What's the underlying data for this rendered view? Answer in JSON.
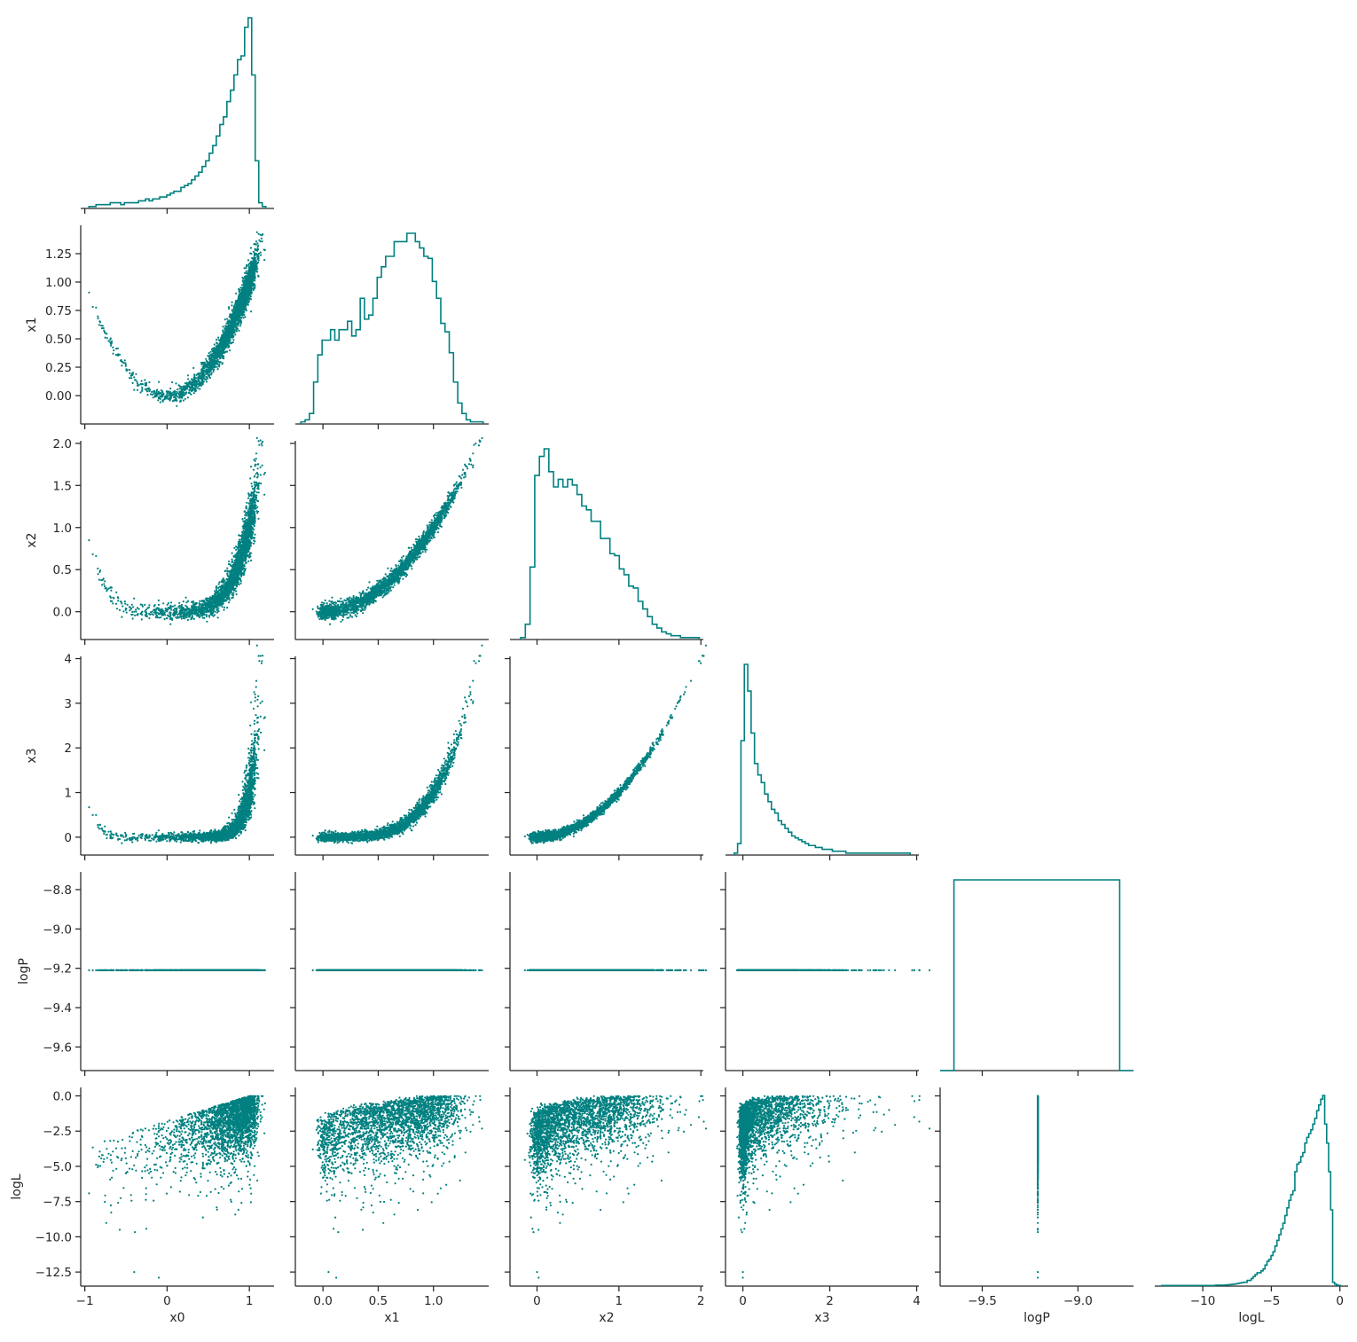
{
  "chart_data": {
    "type": "scatter",
    "layout": "corner-plot",
    "color": "#008080",
    "variables": [
      "x0",
      "x1",
      "x2",
      "x3",
      "logP",
      "logL"
    ],
    "axis_labels": {
      "x0": "x0",
      "x1": "x1",
      "x2": "x2",
      "x3": "x3",
      "logP": "logP",
      "logL": "logL"
    },
    "ranges": {
      "x0": [
        -1.05,
        1.3
      ],
      "x1": [
        -0.25,
        1.5
      ],
      "x2": [
        -0.33,
        2.03
      ],
      "x3": [
        -0.4,
        4.05
      ],
      "logP": [
        -9.72,
        -8.71
      ],
      "logL": [
        -13.5,
        0.6
      ]
    },
    "ticks": {
      "x0": [
        -1,
        0,
        1
      ],
      "x1": [
        0.0,
        0.5,
        1.0
      ],
      "x2": [
        0,
        1,
        2
      ],
      "x3": [
        0,
        2,
        4
      ],
      "logP": [
        -9.5,
        -9.0
      ],
      "logL": [
        -10,
        -5,
        0
      ]
    },
    "row_ticks": {
      "x1": [
        0.0,
        0.25,
        0.5,
        0.75,
        1.0,
        1.25
      ],
      "x2": [
        0.0,
        0.5,
        1.0,
        1.5,
        2.0
      ],
      "x3": [
        0,
        1,
        2,
        3,
        4
      ],
      "logP": [
        -9.6,
        -9.4,
        -9.2,
        -9.0,
        -8.8
      ],
      "logL": [
        -12.5,
        -10.0,
        -7.5,
        -5.0,
        -2.5,
        0.0
      ]
    },
    "tick_text": {
      "x": {
        "x0": [
          "−1",
          "0",
          "1"
        ],
        "x1": [
          "0.0",
          "0.5",
          "1.0"
        ],
        "x2": [
          "0",
          "1",
          "2"
        ],
        "x3": [
          "0",
          "2",
          "4"
        ],
        "logP": [
          "−9.5",
          "−9.0"
        ],
        "logL": [
          "−10",
          "−5",
          "0"
        ]
      },
      "y": {
        "x1": [
          "0.00",
          "0.25",
          "0.50",
          "0.75",
          "1.00",
          "1.25"
        ],
        "x2": [
          "0.0",
          "0.5",
          "1.0",
          "1.5",
          "2.0"
        ],
        "x3": [
          "0",
          "1",
          "2",
          "3",
          "4"
        ],
        "logP": [
          "−9.6",
          "−9.4",
          "−9.2",
          "−9.0",
          "−8.8"
        ],
        "logL": [
          "−12.5",
          "−10.0",
          "−7.5",
          "−5.0",
          "−2.5",
          "0.0"
        ]
      }
    },
    "histograms": {
      "x0": {
        "range": [
          -0.95,
          1.2
        ],
        "counts": [
          1,
          1,
          2,
          2,
          2,
          2,
          3,
          3,
          3,
          2,
          3,
          3,
          3,
          3,
          4,
          4,
          5,
          4,
          5,
          5,
          6,
          6,
          7,
          8,
          9,
          9,
          11,
          12,
          13,
          15,
          17,
          19,
          22,
          25,
          29,
          33,
          38,
          44,
          48,
          56,
          62,
          70,
          78,
          80,
          95,
          100,
          70,
          25,
          3,
          1
        ]
      },
      "x1": {
        "range": [
          -0.2,
          1.45
        ],
        "counts": [
          1,
          2,
          5,
          20,
          33,
          40,
          40,
          45,
          40,
          45,
          45,
          49,
          42,
          45,
          60,
          50,
          52,
          60,
          70,
          75,
          80,
          80,
          87,
          87,
          87,
          91,
          91,
          87,
          84,
          80,
          79,
          68,
          60,
          48,
          44,
          34,
          20,
          10,
          5,
          2,
          1,
          1,
          1
        ]
      },
      "x2": {
        "range": [
          -0.2,
          1.98
        ],
        "counts": [
          1,
          8,
          38,
          86,
          96,
          100,
          88,
          80,
          84,
          80,
          84,
          81,
          76,
          70,
          68,
          62,
          62,
          53,
          53,
          45,
          44,
          37,
          34,
          28,
          27,
          20,
          16,
          12,
          8,
          6,
          4,
          3,
          2,
          2,
          1,
          1,
          1,
          1
        ]
      },
      "x3": {
        "range": [
          -0.2,
          3.85
        ],
        "counts": [
          1,
          6,
          60,
          100,
          86,
          64,
          48,
          42,
          38,
          32,
          28,
          24,
          22,
          18,
          16,
          14,
          12,
          10,
          9,
          8,
          7,
          6,
          5,
          5,
          4,
          4,
          3,
          3,
          3,
          2,
          2,
          2,
          2,
          1,
          1,
          1,
          1,
          1,
          1,
          1,
          1,
          1,
          1,
          1,
          1,
          1,
          1,
          1,
          1,
          1,
          1,
          1
        ]
      },
      "logP": {
        "range": [
          -9.72,
          -8.71
        ],
        "counts": [
          0,
          100,
          100,
          100,
          100,
          100,
          100,
          100,
          100,
          100,
          100,
          100,
          100,
          0
        ]
      },
      "logL": {
        "range": [
          -13.0,
          0.05
        ],
        "counts": [
          0.3,
          0.3,
          0.3,
          0.3,
          0.3,
          0.3,
          0.3,
          0.3,
          0.3,
          0.3,
          0.3,
          0.3,
          0.3,
          0.3,
          0.3,
          0.3,
          0.3,
          0.3,
          0.3,
          0.3,
          0.3,
          0.3,
          0.3,
          0.3,
          0.3,
          0.3,
          0.3,
          0.5,
          0.5,
          0.5,
          0.5,
          0.5,
          0.6,
          0.7,
          0.8,
          0.9,
          1.0,
          1.2,
          1.4,
          1.6,
          1.8,
          2,
          2,
          3,
          3,
          4,
          5,
          6,
          7,
          7,
          8,
          9,
          11,
          13,
          14,
          16,
          18,
          21,
          24,
          27,
          30,
          33,
          37,
          41,
          45,
          48,
          50,
          60,
          64,
          65,
          68,
          70,
          75,
          78,
          80,
          82,
          85,
          88,
          92,
          95,
          98,
          100,
          85,
          75,
          60,
          40,
          2,
          1,
          0.5,
          0.3
        ]
      }
    }
  }
}
